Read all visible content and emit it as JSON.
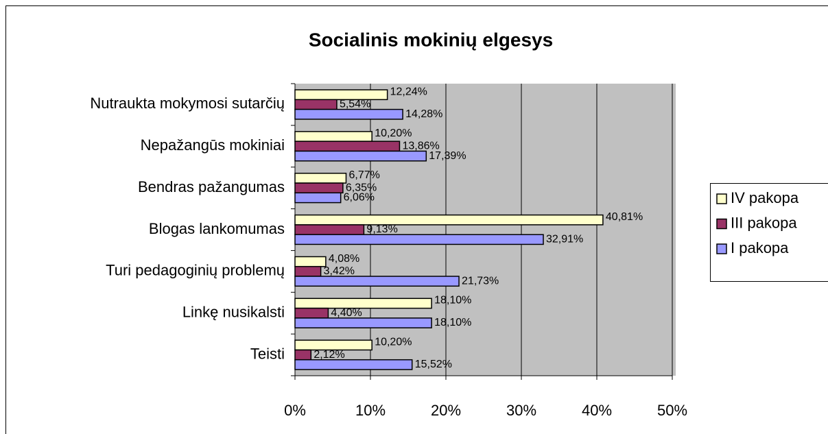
{
  "chart_data": {
    "type": "barh",
    "title": "Socialinis mokinių elgesys",
    "categories": [
      "Nutraukta mokymosi sutarčių",
      "Nepažangūs mokiniai",
      "Bendras pažangumas",
      "Blogas lankomumas",
      "Turi pedagoginių problemų",
      "Linkę nusikalsti",
      "Teisti"
    ],
    "series": [
      {
        "name": "IV pakopa",
        "color": "#ffffcc",
        "values": [
          12.24,
          10.2,
          6.77,
          40.81,
          4.08,
          18.1,
          10.2
        ],
        "value_labels": [
          "12,24%",
          "10,20%",
          "6,77%",
          "40,81%",
          "4,08%",
          "18,10%",
          "10,20%"
        ]
      },
      {
        "name": "III pakopa",
        "color": "#993366",
        "values": [
          5.54,
          13.86,
          6.35,
          9.13,
          3.42,
          4.4,
          2.12
        ],
        "value_labels": [
          "5,54%",
          "13,86%",
          "6,35%",
          "9,13%",
          "3,42%",
          "4,40%",
          "2,12%"
        ]
      },
      {
        "name": "I pakopa",
        "color": "#9999ff",
        "values": [
          14.28,
          17.39,
          6.06,
          32.91,
          21.73,
          18.1,
          15.52
        ],
        "value_labels": [
          "14,28%",
          "17,39%",
          "6,06%",
          "32,91%",
          "21,73%",
          "18,10%",
          "15,52%"
        ]
      }
    ],
    "xlim": [
      0,
      50
    ],
    "xticks": [
      {
        "value": 0,
        "label": "0%"
      },
      {
        "value": 10,
        "label": "10%"
      },
      {
        "value": 20,
        "label": "20%"
      },
      {
        "value": 30,
        "label": "30%"
      },
      {
        "value": 40,
        "label": "40%"
      },
      {
        "value": 50,
        "label": "50%"
      }
    ],
    "grid": true,
    "legend": "right"
  }
}
